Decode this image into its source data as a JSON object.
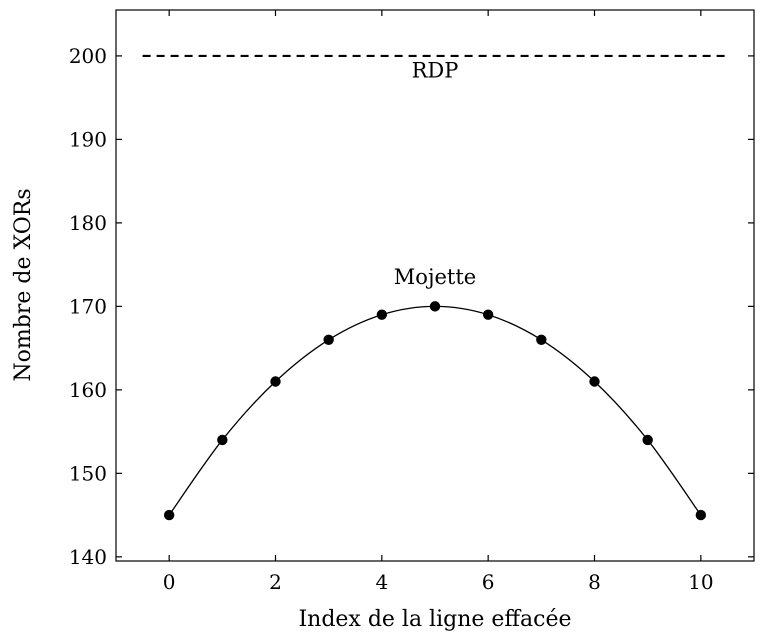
{
  "chart_data": {
    "type": "line",
    "title": "",
    "xlabel": "Index de la ligne effacée",
    "ylabel": "Nombre de XORs",
    "xlim": [
      -1,
      11
    ],
    "ylim": [
      139.5,
      205.5
    ],
    "xticks": [
      0,
      2,
      4,
      6,
      8,
      10
    ],
    "yticks": [
      140,
      150,
      160,
      170,
      180,
      190,
      200
    ],
    "grid": false,
    "series": [
      {
        "name": "Mojette",
        "style": "solid-with-markers",
        "color": "#000000",
        "x": [
          0,
          1,
          2,
          3,
          4,
          5,
          6,
          7,
          8,
          9,
          10
        ],
        "y": [
          145,
          154,
          161,
          166,
          169,
          170,
          169,
          166,
          161,
          154,
          145
        ]
      },
      {
        "name": "RDP",
        "style": "dashed",
        "color": "#000000",
        "x": [
          -0.5,
          10.5
        ],
        "y": [
          200,
          200
        ]
      }
    ],
    "annotations": [
      {
        "text": "Mojette",
        "x": 5,
        "y": 172.7
      },
      {
        "text": "RDP",
        "x": 5,
        "y": 197.4
      }
    ]
  }
}
